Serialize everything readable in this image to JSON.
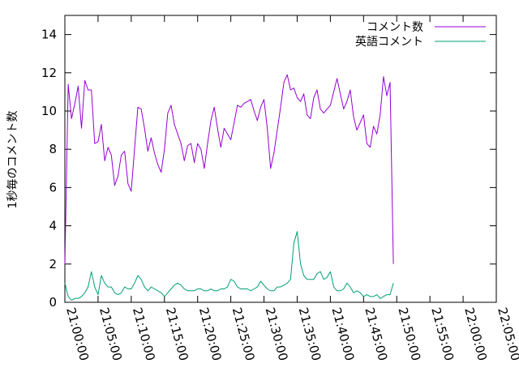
{
  "chart_data": {
    "type": "line",
    "title": "",
    "xlabel": "",
    "ylabel": "1秒毎のコメント数",
    "xlim": [
      "21:00:00",
      "22:05:00"
    ],
    "ylim": [
      0,
      15
    ],
    "x_ticks": [
      "21:00:00",
      "21:05:00",
      "21:10:00",
      "21:15:00",
      "21:20:00",
      "21:25:00",
      "21:30:00",
      "21:35:00",
      "21:40:00",
      "21:45:00",
      "21:50:00",
      "21:55:00",
      "22:00:00",
      "22:05:00"
    ],
    "y_ticks": [
      0,
      2,
      4,
      6,
      8,
      10,
      12,
      14
    ],
    "grid": false,
    "legend_position": "top-right",
    "x_interval_seconds": 30,
    "series": [
      {
        "name": "コメント数",
        "color": "#9400d3",
        "values": [
          2.0,
          11.4,
          9.6,
          10.4,
          11.3,
          9.1,
          11.6,
          11.1,
          11.1,
          8.3,
          8.4,
          9.3,
          7.4,
          8.1,
          7.7,
          6.1,
          6.6,
          7.7,
          7.9,
          6.2,
          5.8,
          8.0,
          10.2,
          10.1,
          9.1,
          7.9,
          8.6,
          7.8,
          7.2,
          6.8,
          8.0,
          9.9,
          10.3,
          9.3,
          8.8,
          8.3,
          7.4,
          8.2,
          8.3,
          7.3,
          8.3,
          8.0,
          7.0,
          8.3,
          9.5,
          10.2,
          9.1,
          8.1,
          9.1,
          8.8,
          8.5,
          9.4,
          10.3,
          10.2,
          10.4,
          10.5,
          10.6,
          10.0,
          9.5,
          10.2,
          10.6,
          9.1,
          7.0,
          7.8,
          9.0,
          10.2,
          11.5,
          11.9,
          11.1,
          11.2,
          10.7,
          10.5,
          10.9,
          9.8,
          9.6,
          10.7,
          11.1,
          10.1,
          9.9,
          10.1,
          10.3,
          11.0,
          11.7,
          10.9,
          10.1,
          10.5,
          11.1,
          9.7,
          9.0,
          9.4,
          9.8,
          8.3,
          8.1,
          9.2,
          8.8,
          9.8,
          11.8,
          10.8,
          11.5,
          2.0
        ]
      },
      {
        "name": "英語コメント",
        "color": "#009e73",
        "values": [
          1.0,
          0.3,
          0.1,
          0.2,
          0.2,
          0.3,
          0.5,
          0.8,
          1.6,
          0.8,
          0.4,
          1.4,
          1.0,
          0.8,
          0.8,
          0.5,
          0.4,
          0.5,
          0.8,
          0.7,
          0.7,
          1.0,
          1.4,
          1.2,
          0.8,
          0.6,
          0.8,
          0.7,
          0.6,
          0.5,
          0.3,
          0.5,
          0.7,
          0.9,
          1.0,
          0.9,
          0.7,
          0.6,
          0.6,
          0.6,
          0.7,
          0.7,
          0.6,
          0.6,
          0.7,
          0.6,
          0.6,
          0.7,
          0.7,
          0.8,
          1.2,
          1.1,
          0.8,
          0.7,
          0.7,
          0.7,
          0.6,
          0.7,
          0.8,
          1.1,
          0.9,
          0.7,
          0.6,
          0.6,
          0.8,
          0.8,
          0.9,
          1.0,
          1.2,
          3.1,
          3.7,
          2.0,
          1.4,
          1.2,
          1.2,
          1.2,
          1.5,
          1.6,
          1.2,
          1.3,
          1.6,
          0.8,
          0.6,
          0.6,
          0.7,
          1.0,
          0.8,
          0.5,
          0.6,
          0.5,
          0.3,
          0.4,
          0.3,
          0.3,
          0.4,
          0.2,
          0.3,
          0.4,
          0.4,
          1.0
        ]
      }
    ]
  }
}
